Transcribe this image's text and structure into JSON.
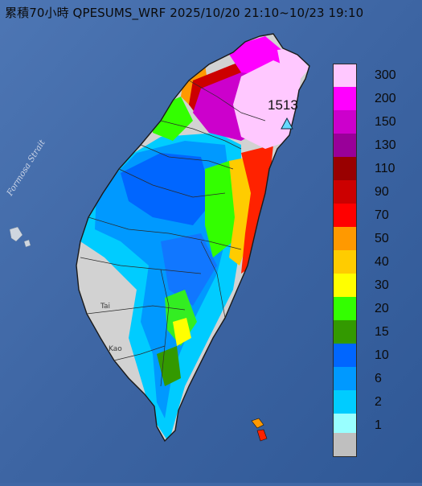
{
  "title": "累積70小時 QPESUMS_WRF 2025/10/20 21:10~10/23 19:10",
  "legend": {
    "items": [
      {
        "label": "300",
        "color": "#ffc8ff"
      },
      {
        "label": "200",
        "color": "#ff00ff"
      },
      {
        "label": "150",
        "color": "#cc00cc"
      },
      {
        "label": "130",
        "color": "#990099"
      },
      {
        "label": "110",
        "color": "#990000"
      },
      {
        "label": "90",
        "color": "#cc0000"
      },
      {
        "label": "70",
        "color": "#ff0000"
      },
      {
        "label": "50",
        "color": "#ff9900"
      },
      {
        "label": "40",
        "color": "#ffcc00"
      },
      {
        "label": "30",
        "color": "#ffff00"
      },
      {
        "label": "20",
        "color": "#33ff00"
      },
      {
        "label": "15",
        "color": "#339900"
      },
      {
        "label": "10",
        "color": "#0066ff"
      },
      {
        "label": "6",
        "color": "#0099ff"
      },
      {
        "label": "2",
        "color": "#00ccff"
      },
      {
        "label": "1",
        "color": "#99ffff"
      },
      {
        "label": "",
        "color": "#bfbfbf"
      }
    ]
  },
  "max_marker": {
    "value": "1513",
    "color": "#66d9ff"
  },
  "map_labels": {
    "strait": "Formosa Strait",
    "city_tainan": "Tai",
    "city_kaohsiung": "Kao"
  },
  "colors": {
    "sea": "#3f67a5",
    "land_gray": "#c8c8c8",
    "rain_blue": "#2f8ff5",
    "rain_green": "#33ee22"
  }
}
